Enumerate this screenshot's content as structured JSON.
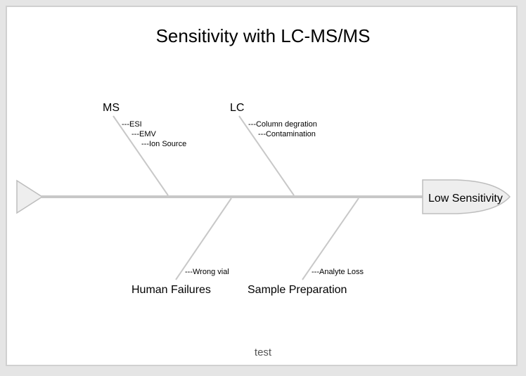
{
  "diagram": {
    "type": "fishbone",
    "title": "Sensitivity with LC-MS/MS",
    "effect": "Low Sensitivity",
    "footer": "test",
    "categories": [
      {
        "name": "MS",
        "position": "top",
        "causes": [
          "---ESI",
          "---EMV",
          "---Ion Source"
        ]
      },
      {
        "name": "LC",
        "position": "top",
        "causes": [
          "---Column degration",
          "---Contamination"
        ]
      },
      {
        "name": "Human Failures",
        "position": "bottom",
        "causes": [
          "---Wrong vial"
        ]
      },
      {
        "name": "Sample Preparation",
        "position": "bottom",
        "causes": [
          "---Analyte Loss"
        ]
      }
    ],
    "colors": {
      "spine": "#c8c8c8",
      "head_fill": "#eeeeee",
      "head_stroke": "#bdbdbd",
      "frame_border": "#d0d0d0",
      "footer_text": "#555555"
    }
  }
}
